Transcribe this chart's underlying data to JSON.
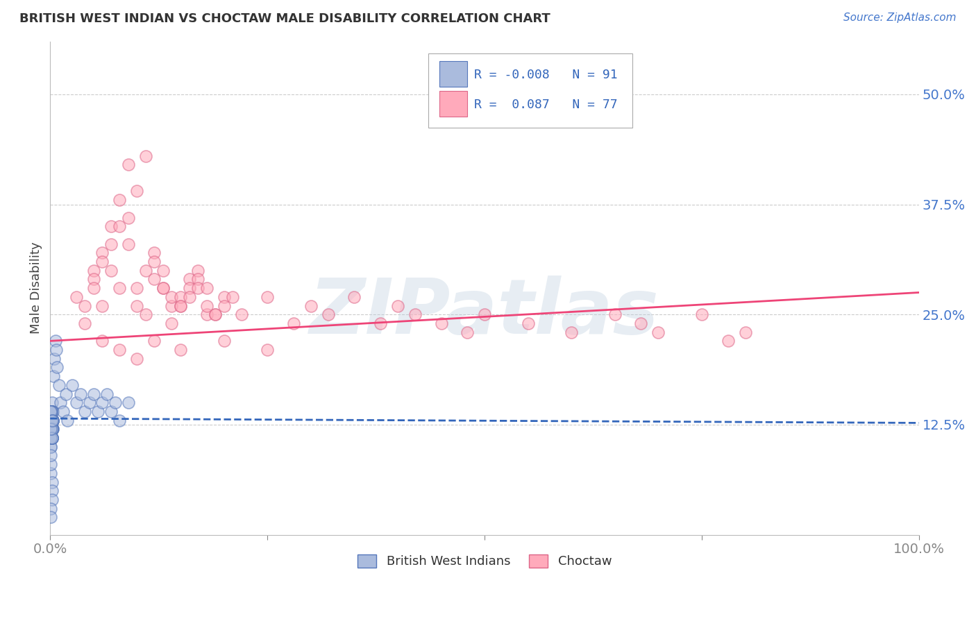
{
  "title": "BRITISH WEST INDIAN VS CHOCTAW MALE DISABILITY CORRELATION CHART",
  "source": "Source: ZipAtlas.com",
  "ylabel": "Male Disability",
  "xlim": [
    0.0,
    1.0
  ],
  "ylim": [
    0.0,
    0.56
  ],
  "yticks": [
    0.125,
    0.25,
    0.375,
    0.5
  ],
  "ytick_labels": [
    "12.5%",
    "25.0%",
    "37.5%",
    "50.0%"
  ],
  "xticks": [
    0.0,
    0.25,
    0.5,
    0.75,
    1.0
  ],
  "xtick_labels": [
    "0.0%",
    "",
    "",
    "",
    "100.0%"
  ],
  "blue_R": -0.008,
  "blue_N": 91,
  "pink_R": 0.087,
  "pink_N": 77,
  "blue_fill": "#AABBDD",
  "blue_edge": "#5577BB",
  "pink_fill": "#FFAABB",
  "pink_edge": "#DD6688",
  "blue_line_color": "#3366BB",
  "pink_line_color": "#EE4477",
  "background_color": "#ffffff",
  "watermark": "ZIPatlas",
  "legend_label_blue": "British West Indians",
  "legend_label_pink": "Choctaw",
  "blue_line_intercept": 0.132,
  "blue_line_slope": -0.005,
  "pink_line_intercept": 0.22,
  "pink_line_slope": 0.055,
  "blue_x": [
    0.002,
    0.001,
    0.003,
    0.001,
    0.002,
    0.001,
    0.003,
    0.002,
    0.001,
    0.002,
    0.001,
    0.002,
    0.001,
    0.003,
    0.002,
    0.001,
    0.002,
    0.001,
    0.002,
    0.003,
    0.001,
    0.002,
    0.001,
    0.002,
    0.001,
    0.001,
    0.002,
    0.001,
    0.002,
    0.001,
    0.002,
    0.001,
    0.002,
    0.001,
    0.003,
    0.002,
    0.001,
    0.002,
    0.001,
    0.002,
    0.001,
    0.002,
    0.001,
    0.003,
    0.002,
    0.001,
    0.002,
    0.001,
    0.002,
    0.001,
    0.003,
    0.002,
    0.001,
    0.002,
    0.001,
    0.002,
    0.003,
    0.002,
    0.001,
    0.002,
    0.004,
    0.005,
    0.006,
    0.007,
    0.008,
    0.01,
    0.012,
    0.015,
    0.018,
    0.02,
    0.025,
    0.03,
    0.035,
    0.04,
    0.045,
    0.05,
    0.055,
    0.06,
    0.065,
    0.07,
    0.075,
    0.08,
    0.09,
    0.001,
    0.002,
    0.001,
    0.002,
    0.001,
    0.002,
    0.001,
    0.001
  ],
  "blue_y": [
    0.13,
    0.12,
    0.14,
    0.11,
    0.15,
    0.1,
    0.13,
    0.12,
    0.14,
    0.13,
    0.12,
    0.11,
    0.13,
    0.12,
    0.14,
    0.13,
    0.12,
    0.11,
    0.13,
    0.12,
    0.14,
    0.13,
    0.12,
    0.11,
    0.1,
    0.13,
    0.12,
    0.14,
    0.13,
    0.11,
    0.12,
    0.13,
    0.14,
    0.12,
    0.13,
    0.11,
    0.12,
    0.13,
    0.14,
    0.12,
    0.13,
    0.11,
    0.12,
    0.13,
    0.14,
    0.12,
    0.11,
    0.13,
    0.12,
    0.14,
    0.13,
    0.12,
    0.11,
    0.13,
    0.14,
    0.12,
    0.13,
    0.11,
    0.12,
    0.13,
    0.18,
    0.2,
    0.22,
    0.21,
    0.19,
    0.17,
    0.15,
    0.14,
    0.16,
    0.13,
    0.17,
    0.15,
    0.16,
    0.14,
    0.15,
    0.16,
    0.14,
    0.15,
    0.16,
    0.14,
    0.15,
    0.13,
    0.15,
    0.07,
    0.06,
    0.08,
    0.05,
    0.09,
    0.04,
    0.03,
    0.02
  ],
  "pink_x": [
    0.03,
    0.05,
    0.04,
    0.06,
    0.04,
    0.05,
    0.07,
    0.05,
    0.06,
    0.08,
    0.06,
    0.07,
    0.09,
    0.07,
    0.08,
    0.1,
    0.08,
    0.09,
    0.11,
    0.09,
    0.1,
    0.12,
    0.1,
    0.11,
    0.13,
    0.11,
    0.12,
    0.14,
    0.12,
    0.13,
    0.15,
    0.13,
    0.14,
    0.16,
    0.14,
    0.15,
    0.17,
    0.15,
    0.16,
    0.18,
    0.16,
    0.17,
    0.19,
    0.17,
    0.18,
    0.2,
    0.18,
    0.19,
    0.21,
    0.2,
    0.22,
    0.25,
    0.28,
    0.3,
    0.32,
    0.35,
    0.38,
    0.4,
    0.42,
    0.45,
    0.48,
    0.5,
    0.55,
    0.6,
    0.65,
    0.68,
    0.7,
    0.75,
    0.78,
    0.8,
    0.06,
    0.08,
    0.1,
    0.12,
    0.15,
    0.2,
    0.25
  ],
  "pink_y": [
    0.27,
    0.3,
    0.26,
    0.32,
    0.24,
    0.29,
    0.35,
    0.28,
    0.31,
    0.38,
    0.26,
    0.33,
    0.42,
    0.3,
    0.35,
    0.39,
    0.28,
    0.36,
    0.43,
    0.33,
    0.28,
    0.32,
    0.26,
    0.3,
    0.28,
    0.25,
    0.29,
    0.26,
    0.31,
    0.28,
    0.26,
    0.3,
    0.27,
    0.29,
    0.24,
    0.27,
    0.3,
    0.26,
    0.28,
    0.25,
    0.27,
    0.29,
    0.25,
    0.28,
    0.26,
    0.27,
    0.28,
    0.25,
    0.27,
    0.26,
    0.25,
    0.27,
    0.24,
    0.26,
    0.25,
    0.27,
    0.24,
    0.26,
    0.25,
    0.24,
    0.23,
    0.25,
    0.24,
    0.23,
    0.25,
    0.24,
    0.23,
    0.25,
    0.22,
    0.23,
    0.22,
    0.21,
    0.2,
    0.22,
    0.21,
    0.22,
    0.21
  ]
}
